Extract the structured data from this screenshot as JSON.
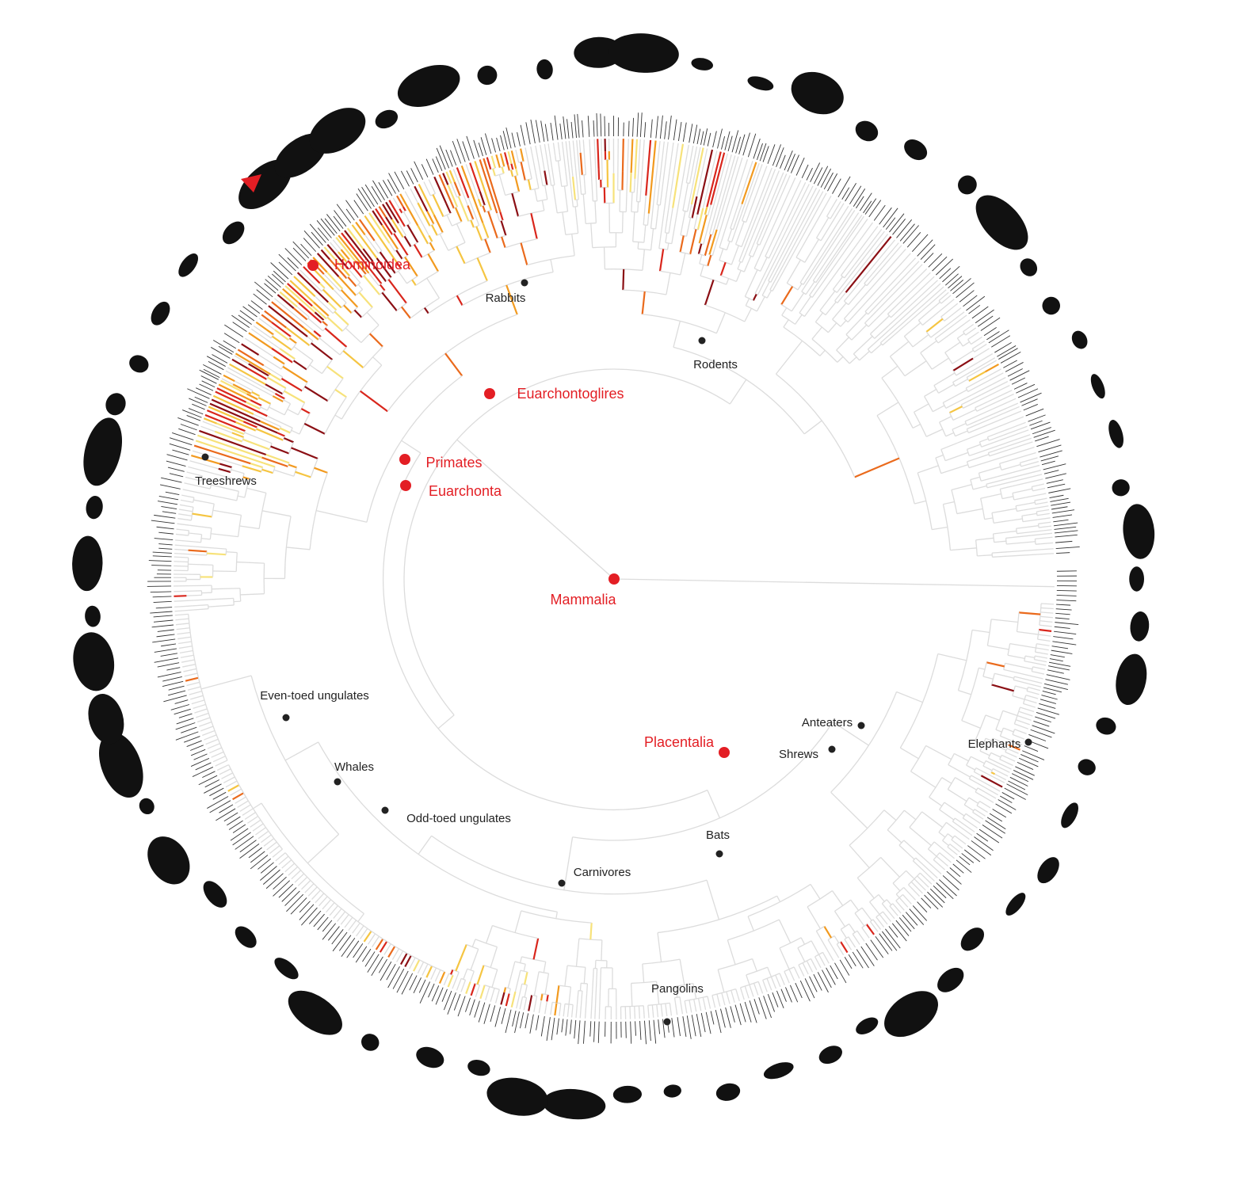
{
  "major_clades": [
    "Mammalia",
    "Placentalia",
    "Euarchontoglires",
    "Primates",
    "Euarchonta",
    "Hominoidea"
  ],
  "clades": [
    "Rabbits",
    "Rodents",
    "Treeshrews",
    "Even-toed ungulates",
    "Whales",
    "Odd-toed ungulates",
    "Carnivores",
    "Bats",
    "Pangolins",
    "Anteaters",
    "Shrews",
    "Elephants"
  ]
}
